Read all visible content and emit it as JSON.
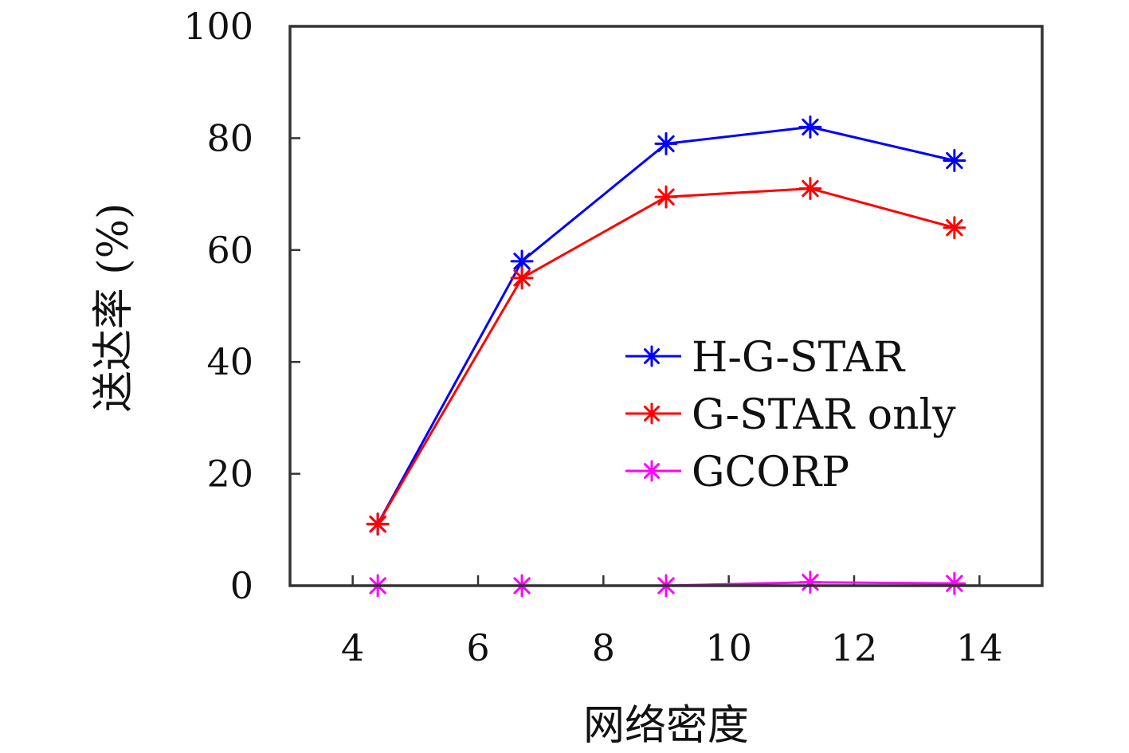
{
  "chart_data": {
    "type": "line",
    "title": "",
    "xlabel": "网络密度",
    "ylabel": "送达率 (%)",
    "xlim": [
      3,
      15
    ],
    "ylim": [
      0,
      100
    ],
    "xticks": [
      4,
      6,
      8,
      10,
      12,
      14
    ],
    "yticks": [
      0,
      20,
      40,
      60,
      80,
      100
    ],
    "xtick_labels": [
      "4",
      "6",
      "8",
      "10",
      "12",
      "14"
    ],
    "ytick_labels": [
      "0",
      "20",
      "40",
      "60",
      "80",
      "100"
    ],
    "grid": false,
    "legend_position": "lower-right (inside plot)",
    "x": [
      4.4,
      6.7,
      9.0,
      11.3,
      13.6
    ],
    "series": [
      {
        "name": "H-G-STAR",
        "color": "#0000ff",
        "marker": "asterisk",
        "values": [
          11,
          58,
          79,
          82,
          76
        ]
      },
      {
        "name": "G-STAR only",
        "color": "#ff0000",
        "marker": "asterisk",
        "values": [
          11,
          55,
          69.5,
          71,
          64
        ]
      },
      {
        "name": "GCORP",
        "color": "#ff00ff",
        "marker": "asterisk",
        "values": [
          0,
          0,
          0,
          0.6,
          0.4
        ]
      }
    ]
  }
}
